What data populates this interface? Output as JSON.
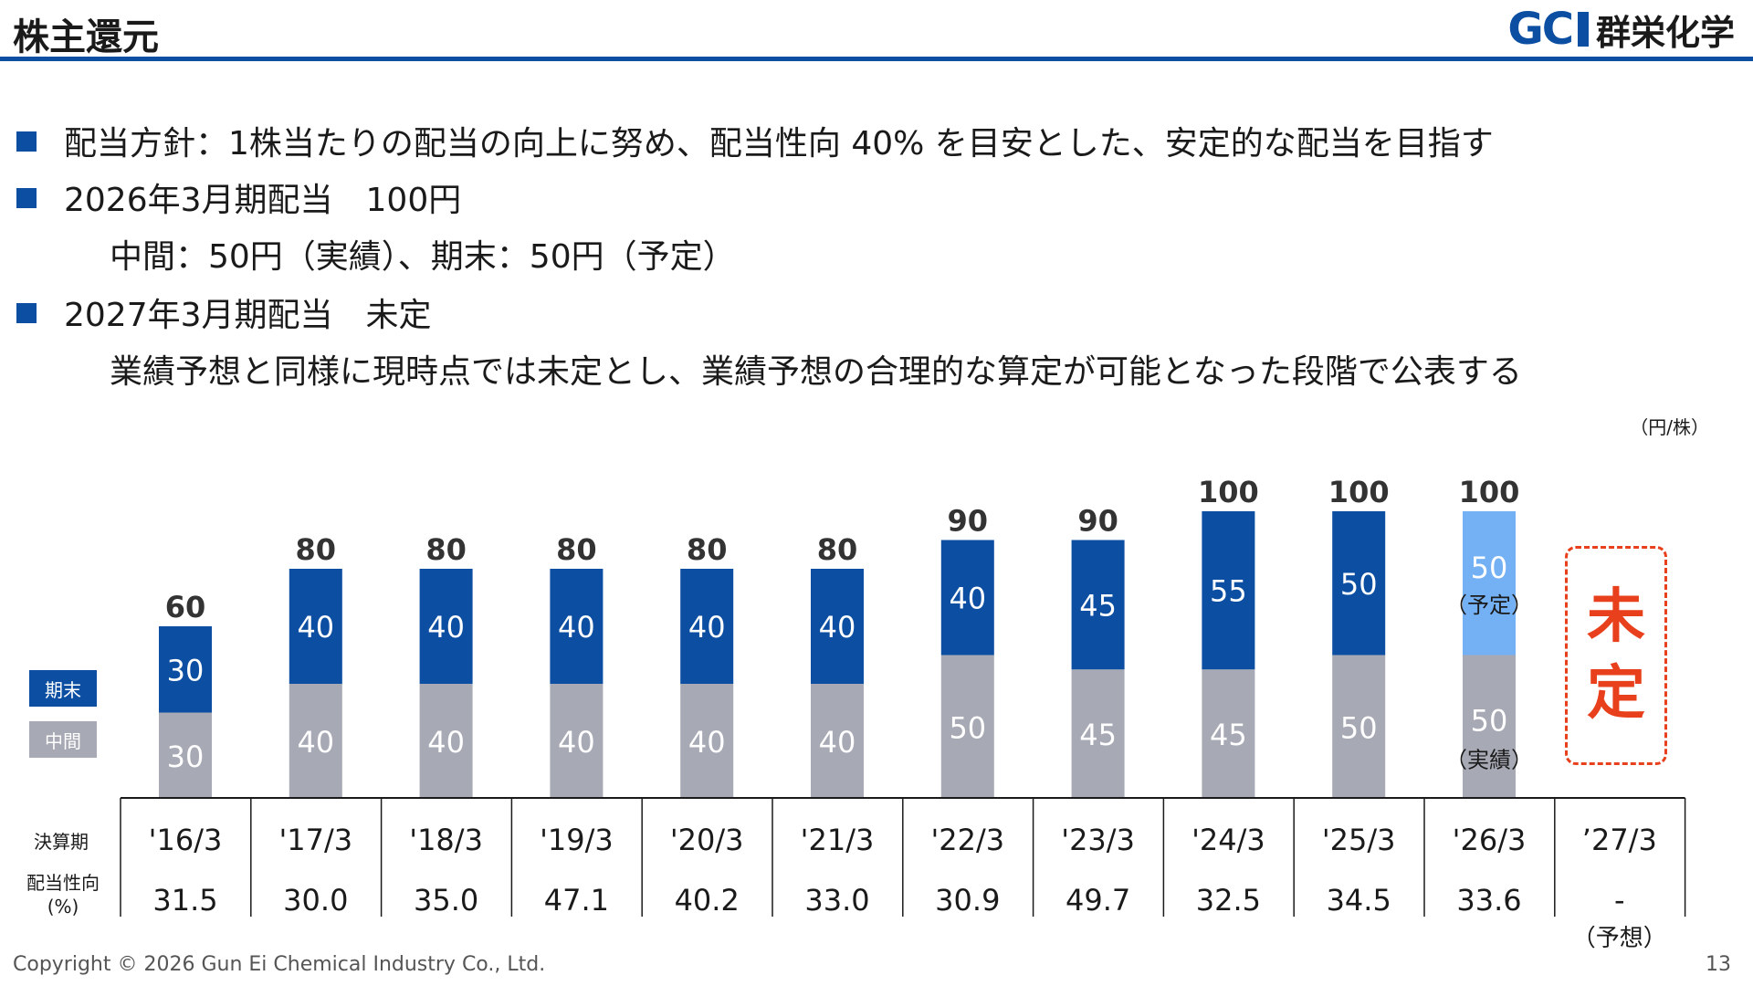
{
  "header": {
    "title": "株主還元",
    "logo_mark": "GC",
    "logo_name": "群栄化学"
  },
  "bullets": {
    "policy": "配当方針：1株当たりの配当の向上に努め、配当性向 40% を目安とした、安定的な配当を目指す",
    "fy2026": "2026年3月期配当　100円",
    "fy2026_detail": "中間：50円（実績）、期末：50円（予定）",
    "fy2027": "2027年3月期配当　未定",
    "fy2027_detail": "業績予想と同様に現時点では未定とし、業績予想の合理的な算定が可能となった段階で公表する"
  },
  "chart_data": {
    "type": "bar",
    "stacked": true,
    "unit": "（円/株）",
    "categories": [
      "'16/3",
      "'17/3",
      "'18/3",
      "'19/3",
      "'20/3",
      "'21/3",
      "'22/3",
      "'23/3",
      "'24/3",
      "'25/3",
      "'26/3",
      "’27/3"
    ],
    "series": [
      {
        "name": "中間",
        "values": [
          30,
          40,
          40,
          40,
          40,
          40,
          50,
          45,
          45,
          50,
          50,
          null
        ]
      },
      {
        "name": "期末",
        "values": [
          30,
          40,
          40,
          40,
          40,
          40,
          40,
          45,
          55,
          50,
          50,
          null
        ]
      }
    ],
    "totals": [
      60,
      80,
      80,
      80,
      80,
      80,
      90,
      90,
      100,
      100,
      100,
      null
    ],
    "payout_ratio_label": "配当性向\n(%)",
    "period_label": "決算期",
    "payout_ratio": [
      "31.5",
      "30.0",
      "35.0",
      "47.1",
      "40.2",
      "33.0",
      "30.9",
      "49.7",
      "32.5",
      "34.5",
      "33.6",
      "-"
    ],
    "annotations": {
      "fy26_final_note": "（予定）",
      "fy26_interim_note": "（実績）",
      "fy27_status": "未定",
      "fy27_payout_note": "（予想）"
    },
    "colors": {
      "interim": "#a7a9b4",
      "final": "#0b4ea2",
      "final_planned": "#74b0f4",
      "undecided": "#e8401c"
    },
    "ylim": [
      0,
      100
    ]
  },
  "legend": {
    "final": "期末",
    "interim": "中間"
  },
  "footer": {
    "copyright": "Copyright © 2026 Gun Ei Chemical Industry Co., Ltd.",
    "page": "13"
  }
}
